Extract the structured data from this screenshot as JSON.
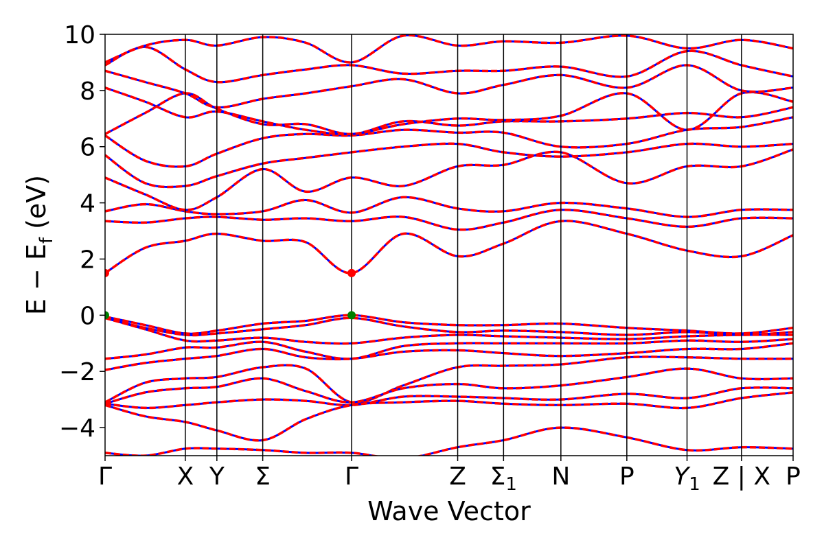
{
  "chart_data": {
    "type": "line",
    "title": "",
    "xlabel": "Wave Vector",
    "ylabel": "E − E",
    "ylabel_subscript": "f",
    "ylabel_unit": " (eV)",
    "ylim": [
      -5,
      10
    ],
    "yticks": [
      10,
      8,
      6,
      4,
      2,
      0,
      -2,
      -4
    ],
    "ytick_labels": [
      "10",
      "8",
      "6",
      "4",
      "2",
      "0",
      "−2",
      "−4"
    ],
    "xlim": [
      0,
      12.0
    ],
    "kpoints": [
      {
        "label": "Γ",
        "x": 0.0
      },
      {
        "label": "X",
        "x": 1.4
      },
      {
        "label": "Y",
        "x": 1.95
      },
      {
        "label": "Σ",
        "x": 2.75
      },
      {
        "label": "Γ",
        "x": 4.3
      },
      {
        "label": "Z",
        "x": 6.15
      },
      {
        "label": "Σ",
        "sub": "1",
        "x": 6.95
      },
      {
        "label": "N",
        "x": 7.95
      },
      {
        "label": "P",
        "x": 9.1
      },
      {
        "label": "Y",
        "sub": "1",
        "x": 10.15,
        "italic": true
      },
      {
        "label": "Z | X",
        "x": 11.1
      },
      {
        "label": "P",
        "x": 12.0
      }
    ],
    "series_style": [
      {
        "role": "band-solid",
        "color": "#0000ff"
      },
      {
        "role": "band-dashed-overlay",
        "color": "#ff0000"
      }
    ],
    "markers": [
      {
        "x": 0.0,
        "y": 1.5,
        "color": "#ff0000"
      },
      {
        "x": 4.3,
        "y": 1.5,
        "color": "#ff0000"
      },
      {
        "x": 0.0,
        "y": 0.0,
        "color": "#008000"
      },
      {
        "x": 4.3,
        "y": 0.0,
        "color": "#008000"
      }
    ],
    "bands": [
      {
        "x": [
          0,
          0.7,
          1.4,
          1.95,
          2.75,
          3.5,
          4.3,
          5.2,
          6.15,
          6.95,
          7.95,
          9.1,
          10.15,
          11.1,
          12.0
        ],
        "y": [
          -0.05,
          -0.35,
          -0.65,
          -0.55,
          -0.3,
          -0.2,
          0.0,
          -0.25,
          -0.35,
          -0.35,
          -0.3,
          -0.45,
          -0.55,
          -0.65,
          -0.45
        ]
      },
      {
        "x": [
          0,
          0.7,
          1.4,
          1.95,
          2.75,
          3.5,
          4.3,
          5.2,
          6.15,
          6.95,
          7.95,
          9.1,
          10.15,
          11.1,
          12.0
        ],
        "y": [
          -0.1,
          -0.45,
          -0.7,
          -0.65,
          -0.5,
          -0.35,
          -0.1,
          -0.4,
          -0.6,
          -0.55,
          -0.6,
          -0.7,
          -0.6,
          -0.7,
          -0.6
        ]
      },
      {
        "x": [
          0,
          0.7,
          1.4,
          1.95,
          2.75,
          3.5,
          4.3,
          5.2,
          6.15,
          6.95,
          7.95,
          9.1,
          10.15,
          11.1,
          12.0
        ],
        "y": [
          -0.1,
          -0.5,
          -0.9,
          -0.9,
          -0.8,
          -0.95,
          -1.0,
          -0.8,
          -0.7,
          -0.75,
          -0.8,
          -0.85,
          -0.75,
          -0.7,
          -0.7
        ]
      },
      {
        "x": [
          0,
          0.7,
          1.4,
          1.95,
          2.75,
          3.5,
          4.3,
          5.2,
          6.15,
          6.95,
          7.95,
          9.1,
          10.15,
          11.1,
          12.0
        ],
        "y": [
          -1.55,
          -1.4,
          -1.15,
          -1.15,
          -0.95,
          -1.3,
          -1.55,
          -1.1,
          -1.0,
          -1.0,
          -1.0,
          -1.0,
          -0.9,
          -0.95,
          -0.85
        ]
      },
      {
        "x": [
          0,
          0.7,
          1.4,
          1.95,
          2.75,
          3.5,
          4.3,
          5.2,
          6.15,
          6.95,
          7.95,
          9.1,
          10.15,
          11.1,
          12.0
        ],
        "y": [
          -1.95,
          -1.7,
          -1.55,
          -1.45,
          -1.2,
          -1.5,
          -1.55,
          -1.3,
          -1.25,
          -1.35,
          -1.45,
          -1.35,
          -1.2,
          -1.2,
          -1.0
        ]
      },
      {
        "x": [
          0,
          0.7,
          1.4,
          1.95,
          2.75,
          3.5,
          4.3,
          5.2,
          6.15,
          6.95,
          7.95,
          9.1,
          10.15,
          11.1,
          12.0
        ],
        "y": [
          -3.1,
          -2.4,
          -2.25,
          -2.2,
          -1.85,
          -1.9,
          -3.1,
          -2.5,
          -1.85,
          -1.8,
          -1.75,
          -1.5,
          -1.5,
          -1.55,
          -1.55
        ]
      },
      {
        "x": [
          0,
          0.7,
          1.4,
          1.95,
          2.75,
          3.5,
          4.3,
          5.2,
          6.15,
          6.95,
          7.95,
          9.1,
          10.15,
          11.1,
          12.0
        ],
        "y": [
          -3.15,
          -2.75,
          -2.6,
          -2.55,
          -2.25,
          -2.7,
          -3.1,
          -2.6,
          -2.45,
          -2.6,
          -2.5,
          -2.2,
          -1.9,
          -2.25,
          -2.25
        ]
      },
      {
        "x": [
          0,
          0.7,
          1.4,
          1.95,
          2.75,
          3.5,
          4.3,
          5.2,
          6.15,
          6.95,
          7.95,
          9.1,
          10.15,
          11.1,
          12.0
        ],
        "y": [
          -3.15,
          -3.3,
          -3.2,
          -3.1,
          -3.0,
          -3.05,
          -3.2,
          -2.9,
          -2.9,
          -2.95,
          -3.0,
          -2.8,
          -2.95,
          -2.6,
          -2.6
        ]
      },
      {
        "x": [
          0,
          0.7,
          1.4,
          1.95,
          2.75,
          3.5,
          4.3,
          5.2,
          6.15,
          6.95,
          7.95,
          9.1,
          10.15,
          11.1,
          12.0
        ],
        "y": [
          -3.2,
          -3.6,
          -3.8,
          -4.1,
          -4.45,
          -3.7,
          -3.2,
          -3.1,
          -3.05,
          -3.15,
          -3.2,
          -3.15,
          -3.3,
          -2.95,
          -2.75
        ]
      },
      {
        "x": [
          0,
          0.7,
          1.4,
          1.95,
          2.75,
          3.5,
          4.3,
          5.2,
          6.15,
          6.95,
          7.95,
          9.1,
          10.15,
          11.1,
          12.0
        ],
        "y": [
          -4.9,
          -5.0,
          -4.75,
          -4.75,
          -4.8,
          -4.9,
          -4.9,
          -5.1,
          -4.7,
          -4.45,
          -4.0,
          -4.35,
          -4.8,
          -4.7,
          -4.75
        ]
      },
      {
        "x": [
          0,
          0.7,
          1.4,
          1.95,
          2.75,
          3.5,
          4.3,
          5.2,
          6.15,
          6.95,
          7.95,
          9.1,
          10.15,
          11.1,
          12.0
        ],
        "y": [
          1.5,
          2.4,
          2.65,
          2.9,
          2.65,
          2.6,
          1.5,
          2.9,
          2.1,
          2.55,
          3.35,
          2.9,
          2.3,
          2.1,
          2.85
        ]
      },
      {
        "x": [
          0,
          0.7,
          1.4,
          1.95,
          2.75,
          3.5,
          4.3,
          5.2,
          6.15,
          6.95,
          7.95,
          9.1,
          10.15,
          11.1,
          12.0
        ],
        "y": [
          3.35,
          3.3,
          3.45,
          3.5,
          3.4,
          3.45,
          3.35,
          3.5,
          3.05,
          3.3,
          3.75,
          3.45,
          3.15,
          3.45,
          3.45
        ]
      },
      {
        "x": [
          0,
          0.7,
          1.4,
          1.95,
          2.75,
          3.5,
          4.3,
          5.2,
          6.15,
          6.95,
          7.95,
          9.1,
          10.15,
          11.1,
          12.0
        ],
        "y": [
          3.7,
          3.95,
          3.7,
          3.6,
          3.7,
          4.1,
          3.65,
          4.2,
          3.8,
          3.7,
          4.0,
          3.8,
          3.5,
          3.75,
          3.75
        ]
      },
      {
        "x": [
          0,
          0.7,
          1.4,
          1.95,
          2.75,
          3.5,
          4.3,
          5.2,
          6.15,
          6.95,
          7.95,
          9.1,
          10.15,
          11.1,
          12.0
        ],
        "y": [
          4.9,
          4.3,
          3.75,
          4.2,
          5.2,
          4.4,
          4.9,
          4.6,
          5.3,
          5.35,
          5.8,
          4.7,
          5.3,
          5.3,
          5.9
        ]
      },
      {
        "x": [
          0,
          0.7,
          1.4,
          1.95,
          2.75,
          3.5,
          4.3,
          5.2,
          6.15,
          6.95,
          7.95,
          9.1,
          10.15,
          11.1,
          12.0
        ],
        "y": [
          5.7,
          4.7,
          4.6,
          4.95,
          5.4,
          5.6,
          5.8,
          6.0,
          6.1,
          5.8,
          5.65,
          5.8,
          6.1,
          6.0,
          6.1
        ]
      },
      {
        "x": [
          0,
          0.7,
          1.4,
          1.95,
          2.75,
          3.5,
          4.3,
          5.2,
          6.15,
          6.95,
          7.95,
          9.1,
          10.15,
          11.1,
          12.0
        ],
        "y": [
          6.4,
          5.5,
          5.3,
          5.75,
          6.3,
          6.45,
          6.4,
          6.6,
          6.5,
          6.5,
          6.0,
          6.1,
          6.6,
          6.7,
          7.05
        ]
      },
      {
        "x": [
          0,
          0.7,
          1.4,
          1.95,
          2.75,
          3.5,
          4.3,
          5.2,
          6.15,
          6.95,
          7.95,
          9.1,
          10.15,
          11.1,
          12.0
        ],
        "y": [
          6.45,
          7.2,
          7.9,
          7.35,
          6.8,
          6.8,
          6.45,
          6.9,
          6.75,
          6.9,
          6.9,
          7.0,
          7.2,
          7.05,
          7.4
        ]
      },
      {
        "x": [
          0,
          0.7,
          1.4,
          1.95,
          2.75,
          3.5,
          4.3,
          5.2,
          6.15,
          6.95,
          7.95,
          9.1,
          10.15,
          11.1,
          12.0
        ],
        "y": [
          8.1,
          7.6,
          7.05,
          7.25,
          6.9,
          6.6,
          6.45,
          6.8,
          7.0,
          6.95,
          7.1,
          7.9,
          6.6,
          7.9,
          7.6
        ]
      },
      {
        "x": [
          0,
          0.7,
          1.4,
          1.95,
          2.75,
          3.5,
          4.3,
          5.2,
          6.15,
          6.95,
          7.95,
          9.1,
          10.15,
          11.1,
          12.0
        ],
        "y": [
          8.7,
          8.3,
          7.9,
          7.4,
          7.7,
          7.9,
          8.15,
          8.4,
          7.9,
          8.2,
          8.55,
          8.1,
          8.9,
          8.0,
          8.1
        ]
      },
      {
        "x": [
          0,
          0.7,
          1.4,
          1.95,
          2.75,
          3.5,
          4.3,
          5.2,
          6.15,
          6.95,
          7.95,
          9.1,
          10.15,
          11.1,
          12.0
        ],
        "y": [
          8.9,
          9.55,
          8.75,
          8.3,
          8.55,
          8.75,
          8.9,
          8.6,
          8.7,
          8.7,
          8.85,
          8.5,
          9.4,
          8.9,
          8.5
        ]
      },
      {
        "x": [
          0,
          0.7,
          1.4,
          1.95,
          2.75,
          3.5,
          4.3,
          5.2,
          6.15,
          6.95,
          7.95,
          9.1,
          10.15,
          11.1,
          12.0
        ],
        "y": [
          9.0,
          9.6,
          9.8,
          9.6,
          9.9,
          9.7,
          9.0,
          9.95,
          9.6,
          9.75,
          9.7,
          9.95,
          9.5,
          9.8,
          9.5
        ]
      }
    ]
  }
}
